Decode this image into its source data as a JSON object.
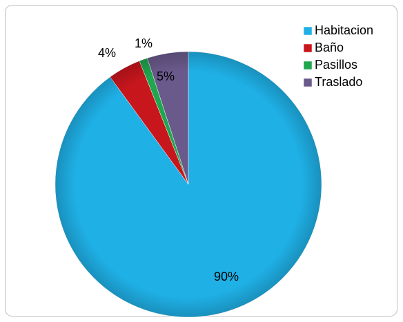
{
  "chart_data": {
    "type": "pie",
    "categories": [
      "Habitacion",
      "Baño",
      "Pasillos",
      "Traslado"
    ],
    "values": [
      90,
      4,
      1,
      5
    ],
    "value_labels": [
      "90%",
      "4%",
      "1%",
      "5%"
    ],
    "colors": [
      "#1fb0e6",
      "#c8161d",
      "#1fa64e",
      "#6a5a8c"
    ],
    "legend": "top-right"
  }
}
